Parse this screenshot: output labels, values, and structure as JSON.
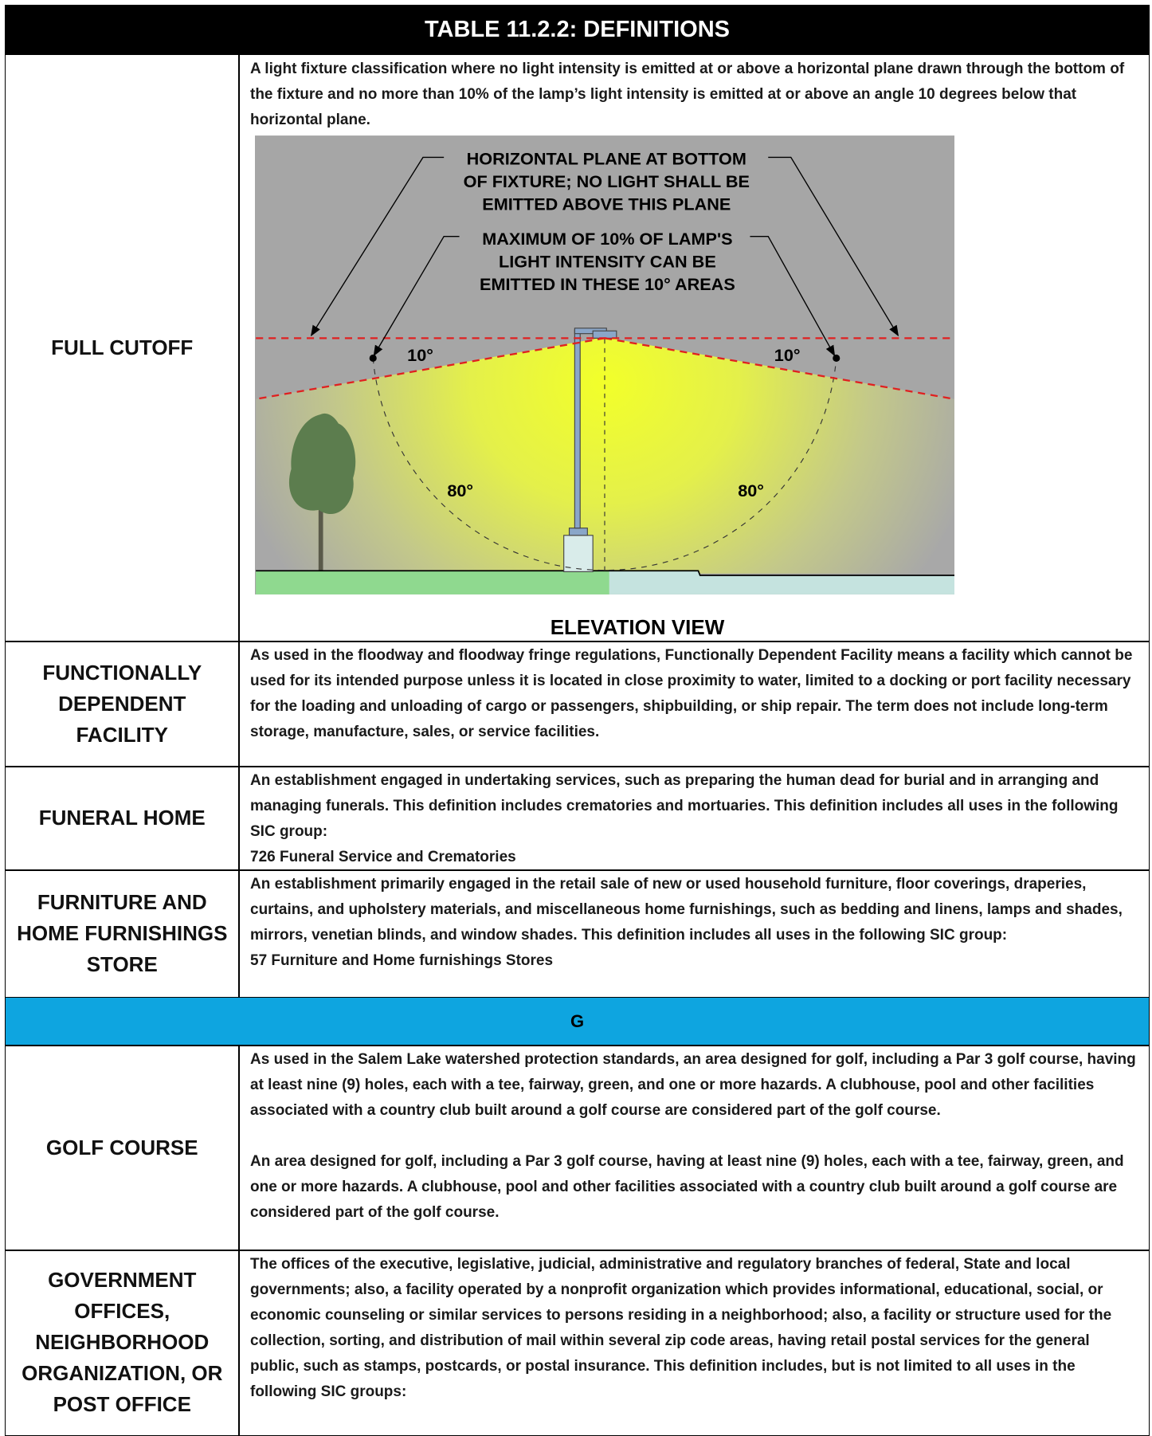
{
  "header": {
    "title": "TABLE 11.2.2: DEFINITIONS"
  },
  "rows": [
    {
      "term": "FULL CUTOFF",
      "definition": [
        "A light fixture classification where no light intensity is emitted at or above a horizontal plane drawn through the bottom of the fixture and no more than 10% of the lamp’s light intensity is emitted at or above an angle 10 degrees below that horizontal plane."
      ],
      "figure": {
        "label_top": [
          "HORIZONTAL PLANE AT BOTTOM",
          "OF FIXTURE; NO LIGHT SHALL BE",
          "EMITTED ABOVE THIS PLANE"
        ],
        "label_mid": [
          "MAXIMUM OF 10% OF LAMP'S",
          "LIGHT INTENSITY CAN BE",
          "EMITTED IN THESE 10° AREAS"
        ],
        "angles": [
          "10°",
          "10°",
          "80°",
          "80°"
        ],
        "caption": "ELEVATION VIEW"
      }
    },
    {
      "term": "FUNCTIONALLY DEPENDENT FACILITY",
      "definition": [
        "As used in the floodway and floodway fringe regulations, Functionally Dependent Facility means a facility which cannot be used for its intended purpose unless it is located in close proximity to water, limited to a docking or port facility necessary for the loading and unloading of cargo or passengers, shipbuilding, or ship repair. The term does not include long-term storage, manufacture, sales, or service facilities."
      ]
    },
    {
      "term": "FUNERAL HOME",
      "definition": [
        "An establishment engaged in undertaking services, such as preparing the human dead for burial and in arranging and managing funerals. This definition includes crematories and mortuaries. This definition includes all uses in the following SIC group:",
        "726 Funeral Service and Crematories"
      ]
    },
    {
      "term": "FURNITURE AND HOME FURNISHINGS STORE",
      "definition": [
        "An establishment primarily engaged in the retail sale of new or used household furniture, floor coverings, draperies, curtains, and upholstery materials, and miscellaneous home furnishings, such as bedding and linens, lamps and shades, mirrors, venetian blinds, and window shades. This definition includes all uses in the following SIC group:",
        "57 Furniture and Home furnishings Stores"
      ]
    },
    {
      "section": "G"
    },
    {
      "term": "GOLF COURSE",
      "definition": [
        "As used in the Salem Lake watershed protection standards, an area designed for golf, including a Par 3 golf course, having at least nine (9) holes, each with a tee, fairway, green, and one or more hazards. A clubhouse, pool and other facilities associated with a country club built around a golf course are considered part of the golf course.",
        "An area designed for golf, including a Par 3 golf course, having at least nine (9) holes, each with a tee, fairway, green, and one or more hazards. A clubhouse, pool and other facilities associated with a country club built around a golf course are considered part of the golf course."
      ]
    },
    {
      "term": "GOVERNMENT OFFICES, NEIGHBORHOOD ORGANIZATION, OR POST OFFICE",
      "definition": [
        "The offices of the executive, legislative, judicial, administrative and regulatory branches of federal, State and local governments; also, a facility operated by a nonprofit organization which provides informational, educational, social, or economic counseling or similar services to persons residing in a neighborhood; also, a facility or structure used for the collection, sorting, and distribution of mail within several zip code areas, having retail postal services for the general public, such as stamps, postcards, or postal insurance. This definition includes, but is not limited to all uses in the following SIC groups:"
      ]
    }
  ]
}
